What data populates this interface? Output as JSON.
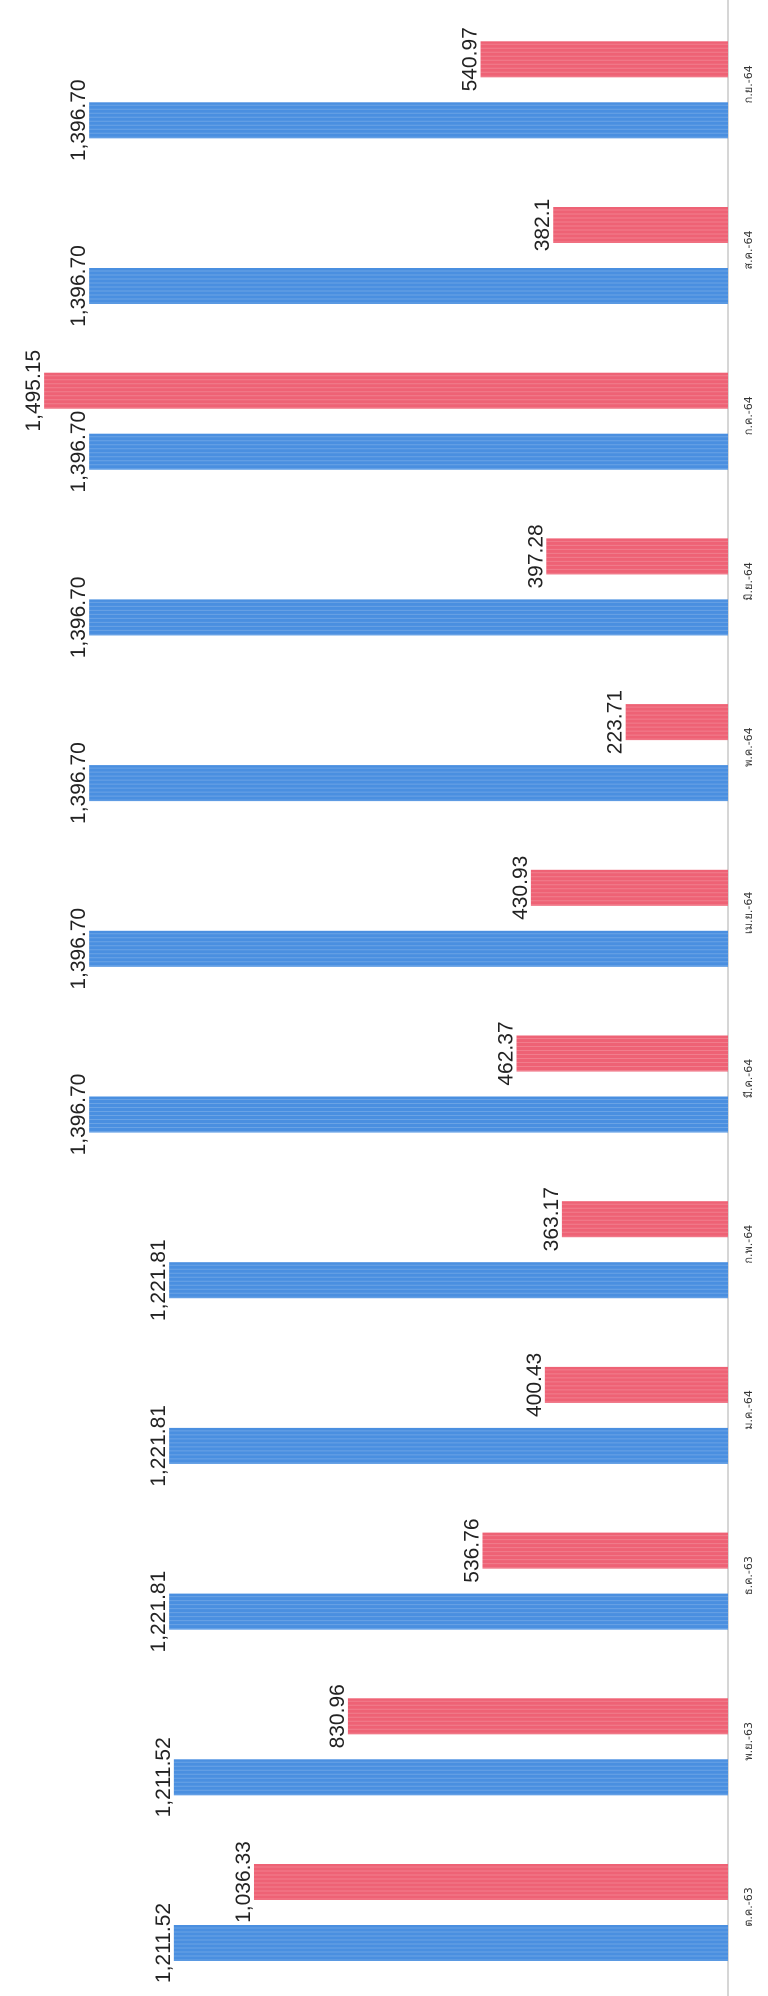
{
  "chart_data": {
    "type": "bar",
    "orientation": "horizontal",
    "categories": [
      "ต.ค.-63",
      "พ.ย.-63",
      "ธ.ค.-63",
      "ม.ค.-64",
      "ก.พ.-64",
      "มี.ค.-64",
      "เม.ย.-64",
      "พ.ค.-64",
      "มิ.ย.-64",
      "ก.ค.-64",
      "ส.ค.-64",
      "ก.ย.-64"
    ],
    "series": [
      {
        "color": "#4a8fe0",
        "values": [
          1211.52,
          1211.52,
          1221.81,
          1221.81,
          1221.81,
          1396.7,
          1396.7,
          1396.7,
          1396.7,
          1396.7,
          1396.7,
          1396.7
        ],
        "labels": [
          "1,211.52",
          "1,211.52",
          "1,221.81",
          "1,221.81",
          "1,221.81",
          "1,396.70",
          "1,396.70",
          "1,396.70",
          "1,396.70",
          "1,396.70",
          "1,396.70",
          "1,396.70"
        ]
      },
      {
        "color": "#ee6275",
        "values": [
          1036.33,
          830.96,
          536.76,
          400.43,
          363.17,
          462.37,
          430.93,
          223.71,
          397.28,
          1495.15,
          382.1,
          540.97
        ],
        "labels": [
          "1,036.33",
          "830.96",
          "536.76",
          "400.43",
          "363.17",
          "462.37",
          "430.93",
          "223.71",
          "397.28",
          "1,495.15",
          "382.1",
          "540.97"
        ]
      }
    ],
    "axis": {
      "min": 0,
      "max": 1495.15
    },
    "grid": false,
    "legend": "none",
    "text_rotation_degrees": -90
  }
}
